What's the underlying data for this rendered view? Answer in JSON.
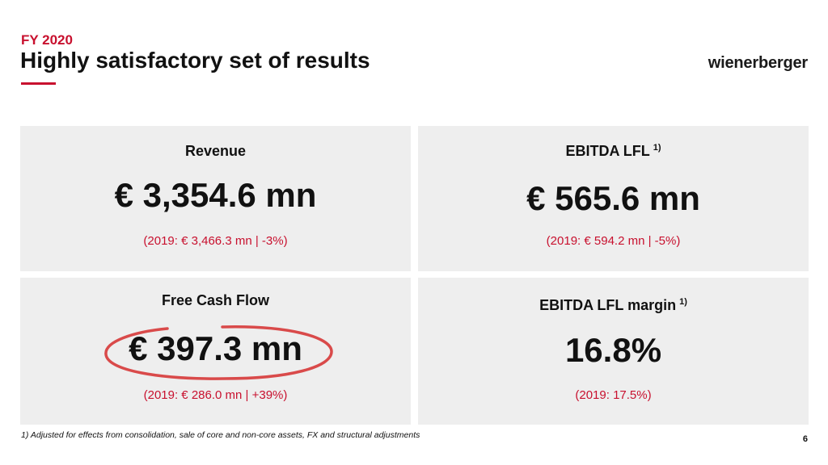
{
  "header": {
    "kicker": "FY 2020",
    "title": "Highly satisfactory set of results",
    "logo_text": "wienerberger",
    "accent_color": "#c8102e"
  },
  "cards": [
    {
      "label": "Revenue",
      "footnote_ref": "",
      "value": "€ 3,354.6 mn",
      "comparison": "(2019: € 3,466.3 mn | -3%)"
    },
    {
      "label": "EBITDA LFL",
      "footnote_ref": "1)",
      "value": "€ 565.6 mn",
      "comparison": "(2019: € 594.2 mn | -5%)"
    },
    {
      "label": "Free Cash Flow",
      "footnote_ref": "",
      "value": "€ 397.3 mn",
      "comparison": "(2019: € 286.0 mn | +39%)"
    },
    {
      "label": "EBITDA LFL margin",
      "footnote_ref": "1)",
      "value": "16.8%",
      "comparison": "(2019: 17.5%)"
    }
  ],
  "footnote": "1) Adjusted for effects from consolidation, sale of core and non-core assets, FX and structural adjustments",
  "page_number": "6"
}
